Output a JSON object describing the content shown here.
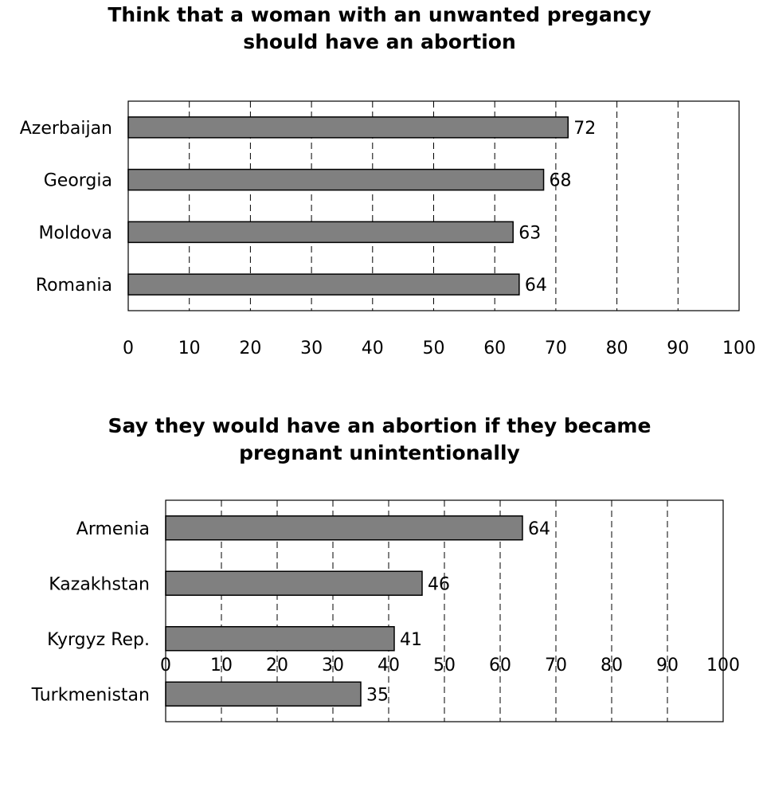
{
  "chart_data": [
    {
      "type": "bar",
      "orientation": "horizontal",
      "title": [
        "Think that a woman with an unwanted pregancy",
        "should have an abortion"
      ],
      "categories": [
        "Azerbaijan",
        "Georgia",
        "Moldova",
        "Romania"
      ],
      "values": [
        72,
        68,
        63,
        64
      ],
      "xlim": [
        0,
        100
      ],
      "xticks": [
        0,
        10,
        20,
        30,
        40,
        50,
        60,
        70,
        80,
        90,
        100
      ],
      "grid": "vertical dashed",
      "bar_color": "#808080",
      "data_labels": true
    },
    {
      "type": "bar",
      "orientation": "horizontal",
      "title": [
        "Say they would have an abortion if they became",
        "pregnant unintentionally"
      ],
      "categories": [
        "Armenia",
        "Kazakhstan",
        "Kyrgyz Rep.",
        "Turkmenistan"
      ],
      "values": [
        64,
        46,
        41,
        35
      ],
      "xlim": [
        0,
        100
      ],
      "xticks": [
        0,
        10,
        20,
        30,
        40,
        50,
        60,
        70,
        80,
        90,
        100
      ],
      "grid": "vertical dashed",
      "bar_color": "#808080",
      "data_labels": true
    }
  ]
}
